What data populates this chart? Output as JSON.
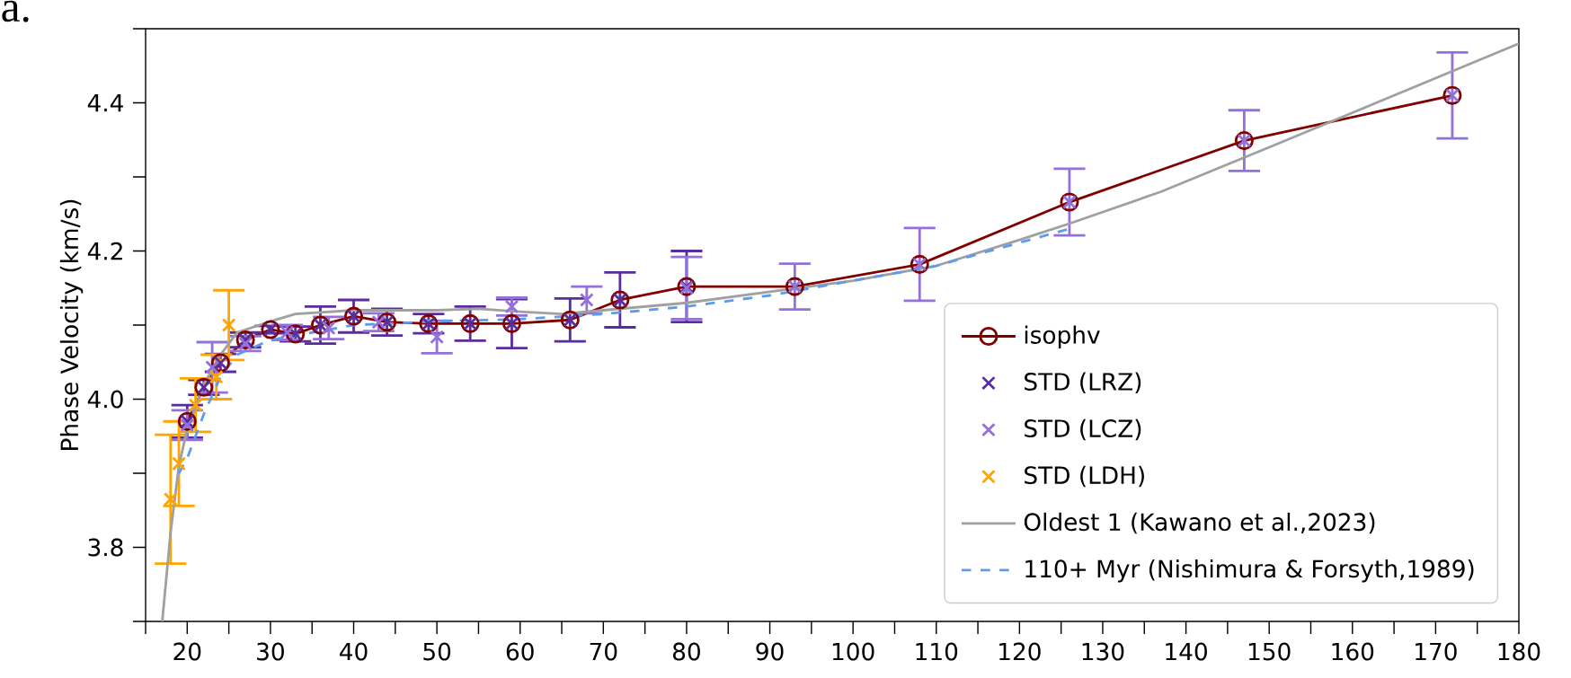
{
  "chart_data": {
    "type": "line",
    "ylabel": "Phase Velocity (km/s)",
    "annotations": [
      "a."
    ],
    "xlim": [
      15,
      180
    ],
    "ylim": [
      3.7,
      4.5
    ],
    "xticks": [
      {
        "value": 15,
        "label": null
      },
      20,
      {
        "value": 25,
        "label": null
      },
      30,
      {
        "value": 35,
        "label": null
      },
      40,
      {
        "value": 45,
        "label": null
      },
      50,
      {
        "value": 55,
        "label": null
      },
      60,
      {
        "value": 65,
        "label": null
      },
      70,
      {
        "value": 75,
        "label": null
      },
      80,
      {
        "value": 85,
        "label": null
      },
      90,
      {
        "value": 95,
        "label": null
      },
      100,
      {
        "value": 105,
        "label": null
      },
      110,
      {
        "value": 115,
        "label": null
      },
      120,
      {
        "value": 125,
        "label": null
      },
      130,
      {
        "value": 135,
        "label": null
      },
      140,
      {
        "value": 145,
        "label": null
      },
      150,
      {
        "value": 155,
        "label": null
      },
      160,
      {
        "value": 165,
        "label": null
      },
      170,
      {
        "value": 175,
        "label": null
      },
      180
    ],
    "yticks": [
      {
        "value": 3.7,
        "label": null
      },
      {
        "value": 3.8,
        "label": "3.8"
      },
      {
        "value": 3.9,
        "label": null
      },
      {
        "value": 4.0,
        "label": "4.0"
      },
      {
        "value": 4.1,
        "label": null
      },
      {
        "value": 4.2,
        "label": "4.2"
      },
      {
        "value": 4.3,
        "label": null
      },
      {
        "value": 4.4,
        "label": "4.4"
      },
      {
        "value": 4.5,
        "label": null
      }
    ],
    "grid": false,
    "legend": "bottom right",
    "series": [
      {
        "name": "isophv",
        "color": "#800000",
        "marker": "circle",
        "line_style": "solid",
        "x": [
          20,
          22,
          24,
          27,
          30,
          33,
          36,
          40,
          44,
          49,
          54,
          59,
          66,
          72,
          80,
          93,
          108,
          126,
          147,
          172
        ],
        "values": [
          3.97,
          4.016,
          4.049,
          4.08,
          4.094,
          4.088,
          4.1,
          4.112,
          4.104,
          4.102,
          4.102,
          4.102,
          4.107,
          4.134,
          4.152,
          4.152,
          4.182,
          4.266,
          4.349,
          4.41
        ]
      },
      {
        "name": "STD (LRZ)",
        "type": "scatter",
        "color": "#5b2c9e",
        "marker": "cross",
        "x": [
          20,
          22,
          24,
          27,
          30,
          33,
          36,
          40,
          44,
          49,
          54,
          59,
          66,
          72,
          80
        ],
        "values": [
          3.97,
          4.016,
          4.049,
          4.08,
          4.094,
          4.088,
          4.1,
          4.112,
          4.104,
          4.102,
          4.102,
          4.102,
          4.107,
          4.134,
          4.152
        ],
        "errors": [
          0.022,
          0.01,
          0.012,
          0.01,
          0.005,
          0.01,
          0.025,
          0.022,
          0.018,
          0.013,
          0.023,
          0.033,
          0.029,
          0.037,
          0.048
        ]
      },
      {
        "name": "STD (LCZ)",
        "type": "scatter",
        "color": "#9370db",
        "marker": "cross",
        "x": [
          20,
          23,
          27,
          32,
          37,
          43,
          50,
          59,
          68,
          80,
          93,
          108,
          126,
          147,
          172
        ],
        "values": [
          3.965,
          4.043,
          4.075,
          4.09,
          4.096,
          4.104,
          4.084,
          4.125,
          4.134,
          4.15,
          4.152,
          4.182,
          4.266,
          4.349,
          4.41
        ],
        "errors": [
          0.02,
          0.034,
          0.01,
          0.01,
          0.015,
          0.012,
          0.022,
          0.012,
          0.018,
          0.042,
          0.031,
          0.049,
          0.045,
          0.041,
          0.058
        ]
      },
      {
        "name": "STD (LDH)",
        "type": "scatter",
        "color": "#ffa500",
        "marker": "cross",
        "x": [
          18,
          19,
          21,
          23.5,
          25
        ],
        "values": [
          3.865,
          3.913,
          3.992,
          4.03,
          4.1
        ],
        "errors": [
          0.087,
          0.057,
          0.036,
          0.03,
          0.047
        ]
      },
      {
        "name": "Oldest 1 (Kawano et al.,2023)",
        "color": "#a0a0a0",
        "marker": "none",
        "line_style": "solid",
        "x": [
          17,
          18,
          19,
          20,
          22,
          24,
          26,
          30,
          33,
          40,
          50,
          55,
          60,
          65,
          70,
          80,
          90,
          100,
          110,
          120,
          126,
          137,
          150,
          165,
          180
        ],
        "values": [
          3.7,
          3.82,
          3.91,
          3.96,
          4.02,
          4.06,
          4.09,
          4.105,
          4.115,
          4.12,
          4.12,
          4.122,
          4.118,
          4.115,
          4.12,
          4.13,
          4.145,
          4.16,
          4.18,
          4.215,
          4.237,
          4.28,
          4.34,
          4.41,
          4.48
        ]
      },
      {
        "name": "110+ Myr (Nishimura & Forsyth,1989)",
        "color": "#5b9bf0",
        "marker": "none",
        "line_style": "dashed",
        "x": [
          19,
          20,
          22,
          24,
          26,
          30,
          35,
          40,
          50,
          60,
          70,
          80,
          90,
          100,
          110,
          126
        ],
        "values": [
          3.9,
          3.92,
          3.98,
          4.03,
          4.06,
          4.08,
          4.09,
          4.1,
          4.105,
          4.108,
          4.115,
          4.125,
          4.14,
          4.16,
          4.18,
          4.23
        ]
      }
    ]
  }
}
